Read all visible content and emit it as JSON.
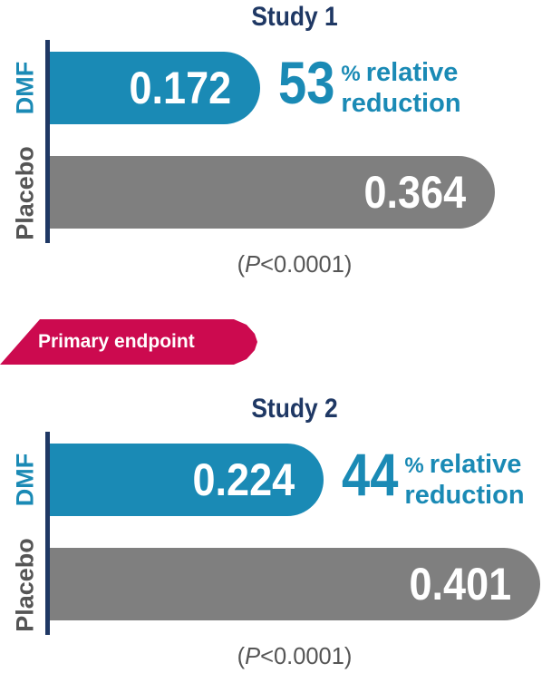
{
  "banner": {
    "label": "Primary endpoint"
  },
  "chart_data": [
    {
      "type": "bar",
      "orientation": "horizontal",
      "title": "Study 1",
      "categories": [
        "DMF",
        "Placebo"
      ],
      "values": [
        0.172,
        0.364
      ],
      "value_labels": [
        "0.172",
        "0.364"
      ],
      "annotation": {
        "value": "53",
        "percent": "%",
        "line1": "relative",
        "line2": "reduction"
      },
      "p_value": {
        "open": "(",
        "symbol": "P",
        "rest": "<0.0001)"
      },
      "colors": {
        "DMF": "#1a8ab5",
        "Placebo": "#7f7f7f"
      }
    },
    {
      "type": "bar",
      "orientation": "horizontal",
      "title": "Study 2",
      "categories": [
        "DMF",
        "Placebo"
      ],
      "values": [
        0.224,
        0.401
      ],
      "value_labels": [
        "0.224",
        "0.401"
      ],
      "annotation": {
        "value": "44",
        "percent": "%",
        "line1": "relative",
        "line2": "reduction"
      },
      "p_value": {
        "open": "(",
        "symbol": "P",
        "rest": "<0.0001)"
      },
      "colors": {
        "DMF": "#1a8ab5",
        "Placebo": "#7f7f7f"
      }
    }
  ]
}
